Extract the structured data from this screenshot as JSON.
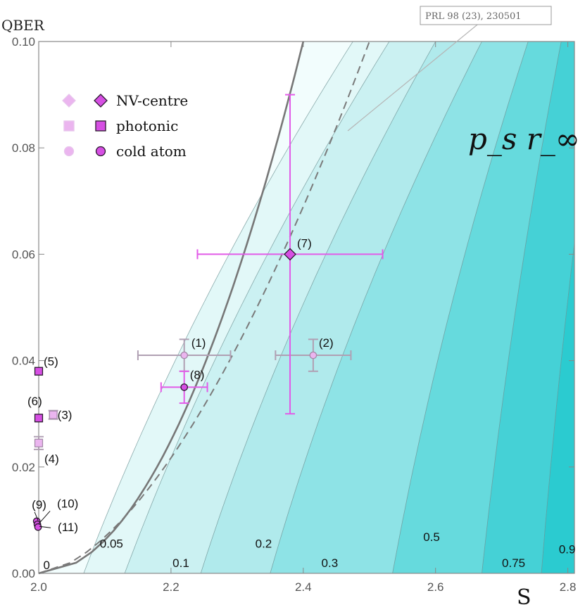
{
  "chart_data": {
    "type": "scatter",
    "xlabel": "S",
    "ylabel": "QBER",
    "xlim": [
      2.0,
      2.81
    ],
    "ylim": [
      0.0,
      0.1
    ],
    "xticks": [
      "2.0",
      "2.2",
      "2.4",
      "2.6",
      "2.8"
    ],
    "yticks": [
      "0.00",
      "0.02",
      "0.04",
      "0.06",
      "0.08",
      "0.10"
    ],
    "annotation_text": "p_s r_∞",
    "reference_label": "PRL 98 (23), 230501",
    "contour_levels": [
      "0",
      "0.05",
      "0.1",
      "0.2",
      "0.3",
      "0.5",
      "0.75",
      "0.9"
    ],
    "legend": [
      {
        "label": "NV-centre",
        "marker": "diamond"
      },
      {
        "label": "photonic",
        "marker": "square"
      },
      {
        "label": "cold atom",
        "marker": "circle"
      }
    ],
    "points": [
      {
        "label": "(1)",
        "S": 2.22,
        "QBER": 0.041,
        "xerr": 0.07,
        "yerr": 0.003,
        "kind": "circle",
        "faded": true
      },
      {
        "label": "(2)",
        "S": 2.415,
        "QBER": 0.041,
        "xerr": 0.057,
        "yerr": 0.003,
        "kind": "circle",
        "faded": true
      },
      {
        "label": "(3)",
        "S": 2.022,
        "QBER": 0.0298,
        "xerr": 0,
        "yerr": 0.0008,
        "kind": "square",
        "faded": true
      },
      {
        "label": "(4)",
        "S": 2.0,
        "QBER": 0.0245,
        "xerr": 0,
        "yerr": 0.0012,
        "kind": "square",
        "faded": true
      },
      {
        "label": "(5)",
        "S": 2.0,
        "QBER": 0.038,
        "xerr": 0,
        "yerr": 0,
        "kind": "square",
        "faded": false
      },
      {
        "label": "(6)",
        "S": 2.0,
        "QBER": 0.0292,
        "xerr": 0,
        "yerr": 0,
        "kind": "square",
        "faded": false
      },
      {
        "label": "(7)",
        "S": 2.38,
        "QBER": 0.06,
        "xerr": 0.14,
        "yerr": 0.03,
        "kind": "diamond",
        "faded": false
      },
      {
        "label": "(8)",
        "S": 2.22,
        "QBER": 0.035,
        "xerr": 0.035,
        "yerr": 0.003,
        "kind": "circle",
        "faded": false
      },
      {
        "label": "(9)",
        "S": 1.997,
        "QBER": 0.0098,
        "xerr": 0,
        "yerr": 0,
        "kind": "circle",
        "faded": false
      },
      {
        "label": "(10)",
        "S": 1.998,
        "QBER": 0.0092,
        "xerr": 0,
        "yerr": 0,
        "kind": "circle",
        "faded": false
      },
      {
        "label": "(11)",
        "S": 1.999,
        "QBER": 0.0087,
        "xerr": 0,
        "yerr": 0,
        "kind": "circle",
        "faded": false
      }
    ]
  },
  "colors": {
    "marker_fill": "#d64fe3",
    "marker_fill_faded": "#ebb5ef",
    "errorbar": "#e25be8",
    "errorbar_faded": "#b0a0b3",
    "boundary": "#777777"
  }
}
